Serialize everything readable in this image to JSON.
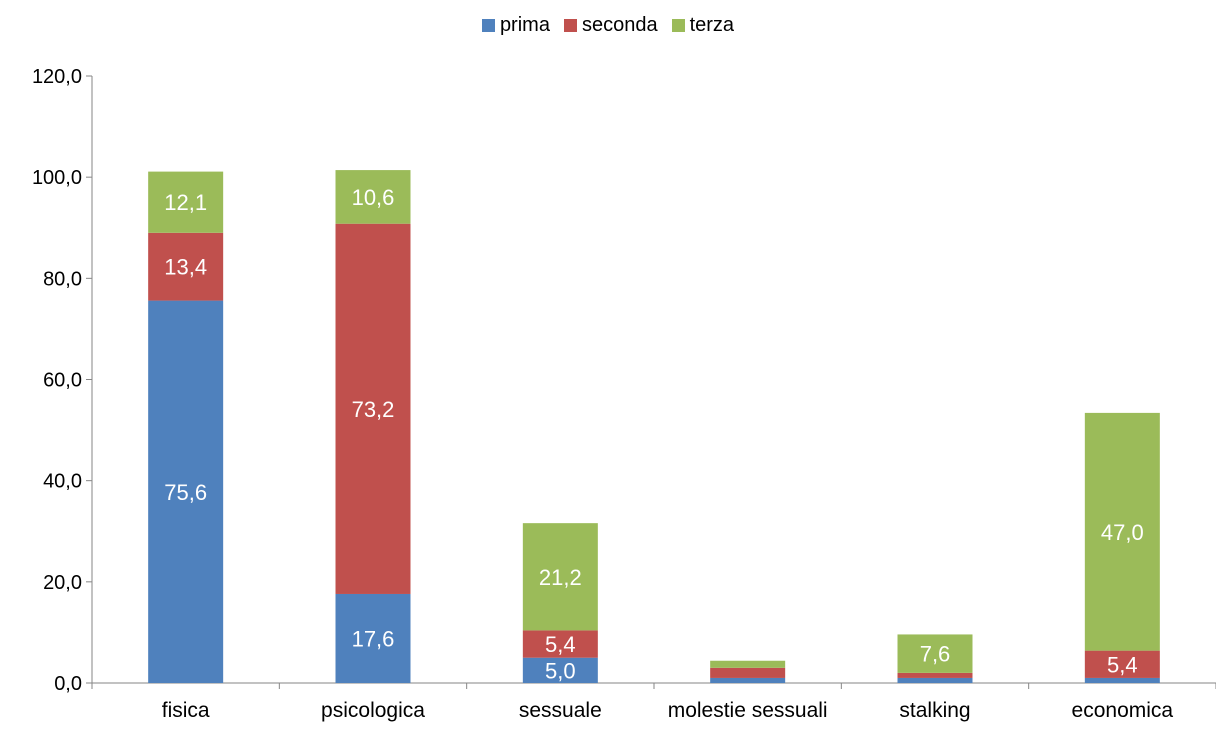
{
  "chart_data": {
    "type": "bar",
    "stacked": true,
    "categories": [
      "fisica",
      "psicologica",
      "sessuale",
      "molestie sessuali",
      "stalking",
      "economica"
    ],
    "series": [
      {
        "name": "prima",
        "color": "#4F81BD",
        "values": [
          75.6,
          17.6,
          5.0,
          1.0,
          1.0,
          1.0
        ],
        "labels": [
          "75,6",
          "17,6",
          "5,0",
          "",
          "",
          ""
        ]
      },
      {
        "name": "seconda",
        "color": "#C0504D",
        "values": [
          13.4,
          73.2,
          5.4,
          2.0,
          1.0,
          5.4
        ],
        "labels": [
          "13,4",
          "73,2",
          "5,4",
          "",
          "",
          "5,4"
        ]
      },
      {
        "name": "terza",
        "color": "#9BBB59",
        "values": [
          12.1,
          10.6,
          21.2,
          1.4,
          7.6,
          47.0
        ],
        "labels": [
          "12,1",
          "10,6",
          "21,2",
          "",
          "7,6",
          "47,0"
        ]
      }
    ],
    "ylim": [
      0,
      120
    ],
    "yticks": [
      0,
      20,
      40,
      60,
      80,
      100,
      120
    ],
    "ytick_labels": [
      "0,0",
      "20,0",
      "40,0",
      "60,0",
      "80,0",
      "100,0",
      "120,0"
    ],
    "legend": "top-center",
    "grid": false,
    "title": "",
    "xlabel": "",
    "ylabel": ""
  }
}
